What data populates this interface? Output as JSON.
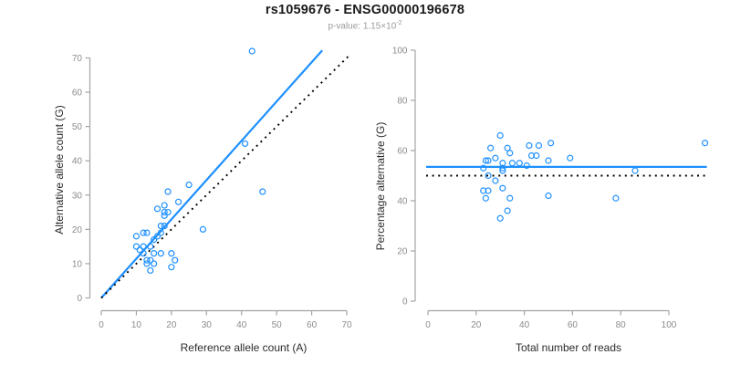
{
  "header": {
    "title": "rs1059676 - ENSG00000196678",
    "subtitle_prefix": "p-value: ",
    "p_value_mantissa": "1.15",
    "p_value_times": "×10",
    "p_value_exponent": "-2"
  },
  "colors": {
    "accent_blue": "#1E90FF",
    "black": "#000000",
    "axis": "#A3A3A3",
    "tick_label": "#8C8C8C",
    "axis_title": "#2B2B2B",
    "title": "#1A1A1A",
    "subtitle": "#9A9A9A"
  },
  "chart_data": [
    {
      "type": "scatter",
      "name": "allele-counts-scatter",
      "xlabel": "Reference allele count (A)",
      "ylabel": "Alternative allele count (G)",
      "xlim": [
        0,
        70
      ],
      "ylim": [
        0,
        70
      ],
      "xticks": [
        0,
        10,
        20,
        30,
        40,
        50,
        60,
        70
      ],
      "yticks": [
        0,
        10,
        20,
        30,
        40,
        50,
        60,
        70
      ],
      "grid": false,
      "points": [
        [
          43,
          72
        ],
        [
          41,
          45
        ],
        [
          25,
          33
        ],
        [
          19,
          31
        ],
        [
          46,
          31
        ],
        [
          22,
          28
        ],
        [
          18,
          27
        ],
        [
          16,
          26
        ],
        [
          18,
          25
        ],
        [
          19,
          25
        ],
        [
          18,
          24
        ],
        [
          29,
          20
        ],
        [
          17,
          21
        ],
        [
          18,
          21
        ],
        [
          17,
          19
        ],
        [
          12,
          19
        ],
        [
          13,
          19
        ],
        [
          10,
          18
        ],
        [
          16,
          18
        ],
        [
          15,
          17
        ],
        [
          10,
          15
        ],
        [
          12,
          15
        ],
        [
          14,
          15
        ],
        [
          11,
          14
        ],
        [
          12,
          13
        ],
        [
          15,
          13
        ],
        [
          17,
          13
        ],
        [
          20,
          13
        ],
        [
          13,
          11
        ],
        [
          14,
          11
        ],
        [
          21,
          11
        ],
        [
          13,
          10
        ],
        [
          15,
          10
        ],
        [
          20,
          9
        ],
        [
          14,
          8
        ]
      ],
      "lines": [
        {
          "name": "regression-line",
          "style": "solid",
          "color_key": "accent_blue",
          "x1": 0,
          "y1": 0,
          "x2": 63,
          "y2": 72.2
        },
        {
          "name": "identity-line",
          "style": "dotted",
          "color_key": "black",
          "x1": 0,
          "y1": 0,
          "x2": 71,
          "y2": 71
        }
      ]
    },
    {
      "type": "scatter",
      "name": "percentage-vs-reads-scatter",
      "xlabel": "Total number of reads",
      "ylabel": "Percentage alternative (G)",
      "xlim": [
        0,
        115
      ],
      "ylim": [
        0,
        100
      ],
      "xticks": [
        0,
        20,
        40,
        60,
        80,
        100
      ],
      "yticks": [
        0,
        20,
        40,
        60,
        80,
        100
      ],
      "grid": false,
      "points": [
        [
          30,
          66
        ],
        [
          26,
          61
        ],
        [
          33,
          61
        ],
        [
          34,
          59
        ],
        [
          42,
          62
        ],
        [
          46,
          62
        ],
        [
          51,
          63
        ],
        [
          43,
          58
        ],
        [
          45,
          58
        ],
        [
          50,
          56
        ],
        [
          59,
          57
        ],
        [
          28,
          57
        ],
        [
          24,
          56
        ],
        [
          25,
          56
        ],
        [
          31,
          55
        ],
        [
          35,
          55
        ],
        [
          38,
          55
        ],
        [
          41,
          54
        ],
        [
          23,
          53
        ],
        [
          31,
          53
        ],
        [
          31,
          52
        ],
        [
          25,
          50
        ],
        [
          28,
          48
        ],
        [
          31,
          45
        ],
        [
          23,
          44
        ],
        [
          25,
          44
        ],
        [
          24,
          41
        ],
        [
          34,
          41
        ],
        [
          50,
          42
        ],
        [
          78,
          41
        ],
        [
          86,
          52
        ],
        [
          115,
          63
        ],
        [
          33,
          36
        ],
        [
          30,
          33
        ]
      ],
      "lines": [
        {
          "name": "mean-percentage-line",
          "style": "solid",
          "color_key": "accent_blue",
          "y": 53.5
        },
        {
          "name": "fifty-percent-line",
          "style": "dotted",
          "color_key": "black",
          "y": 50
        }
      ]
    }
  ]
}
